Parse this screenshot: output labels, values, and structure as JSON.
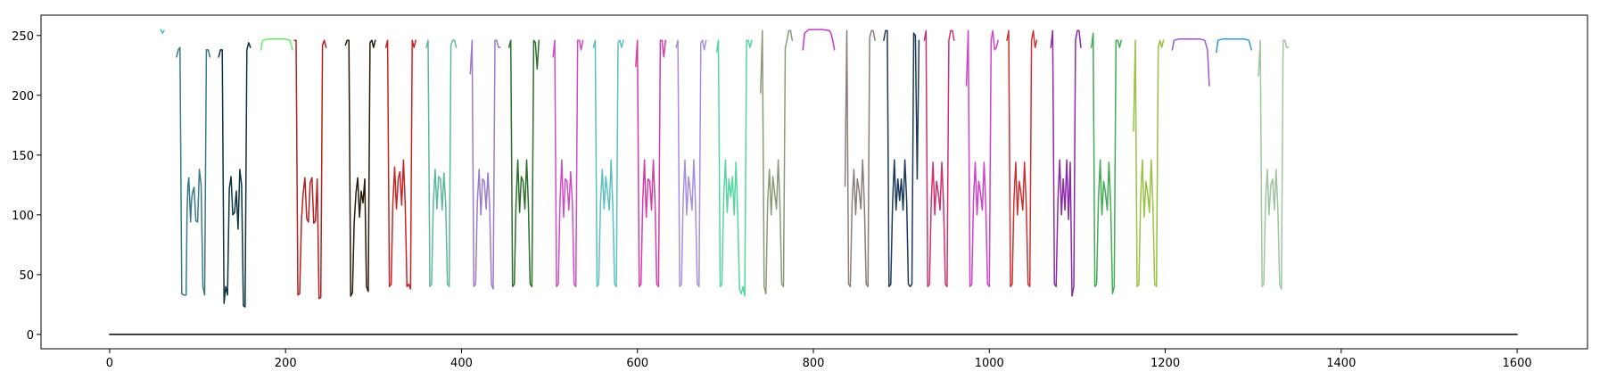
{
  "chart_data": {
    "type": "line",
    "title": "",
    "xlabel": "",
    "ylabel": "",
    "xlim": [
      -78,
      1680
    ],
    "ylim": [
      -12,
      267
    ],
    "grid": false,
    "legend": "none",
    "x_ticks": [
      0,
      200,
      400,
      600,
      800,
      1000,
      1200,
      1400,
      1600
    ],
    "y_ticks": [
      0,
      50,
      100,
      150,
      200,
      250
    ],
    "x_tick_labels": [
      "0",
      "200",
      "400",
      "600",
      "800",
      "1000",
      "1200",
      "1400",
      "1600"
    ],
    "y_tick_labels": [
      "0",
      "50",
      "100",
      "150",
      "200",
      "250"
    ],
    "series": [
      {
        "color": "#000000",
        "x": [
          0,
          1600
        ],
        "y": [
          0,
          0
        ]
      },
      {
        "color": "#3fb8c7",
        "x": [
          58,
          60,
          62
        ],
        "y": [
          255,
          252,
          254
        ]
      },
      {
        "color": "#3a7a86",
        "x": [
          76,
          78,
          80,
          82,
          84,
          87,
          88,
          89,
          90,
          92,
          93,
          94,
          96,
          98,
          100,
          102,
          104,
          106,
          108,
          110,
          112,
          114
        ],
        "y": [
          232,
          238,
          240,
          34,
          33,
          33,
          100,
          125,
          131,
          94,
          112,
          118,
          123,
          95,
          94,
          138,
          125,
          40,
          33,
          238,
          238,
          232
        ]
      },
      {
        "color": "#0d3440",
        "x": [
          124,
          126,
          128,
          130,
          132,
          134,
          136,
          138,
          140,
          142,
          144,
          146,
          148,
          150,
          152,
          154,
          156,
          158,
          160
        ],
        "y": [
          232,
          238,
          238,
          26,
          40,
          33,
          122,
          132,
          100,
          102,
          120,
          88,
          138,
          125,
          24,
          23,
          238,
          244,
          240
        ]
      },
      {
        "color": "#66ee66",
        "x": [
          172,
          174,
          180,
          200,
          205,
          208
        ],
        "y": [
          238,
          246,
          247,
          247,
          246,
          238
        ]
      },
      {
        "color": "#b22222",
        "x": [
          210,
          211,
          212,
          214,
          216,
          218,
          220,
          222,
          224,
          226,
          228,
          230,
          232,
          234,
          236,
          238,
          240,
          242,
          244,
          246
        ],
        "y": [
          246,
          246,
          246,
          33,
          34,
          95,
          118,
          131,
          97,
          94,
          127,
          131,
          93,
          95,
          130,
          30,
          31,
          242,
          246,
          240
        ]
      },
      {
        "color": "#2a1a0a",
        "x": [
          268,
          270,
          272,
          274,
          276,
          278,
          280,
          282,
          284,
          286,
          288,
          290,
          292,
          294,
          296,
          298,
          300,
          302
        ],
        "y": [
          242,
          246,
          246,
          32,
          35,
          93,
          118,
          131,
          98,
          120,
          110,
          130,
          40,
          36,
          244,
          246,
          240,
          246
        ]
      },
      {
        "color": "#cc2222",
        "x": [
          314,
          316,
          318,
          320,
          322,
          324,
          326,
          328,
          330,
          332,
          334,
          336,
          338,
          340,
          342,
          344,
          346,
          348
        ],
        "y": [
          240,
          246,
          40,
          42,
          110,
          140,
          105,
          130,
          136,
          108,
          146,
          110,
          40,
          42,
          38,
          246,
          240,
          246
        ]
      },
      {
        "color": "#5cb89a",
        "x": [
          360,
          362,
          364,
          366,
          368,
          370,
          372,
          374,
          376,
          378,
          380,
          382,
          384,
          386,
          388,
          390,
          392,
          394
        ],
        "y": [
          240,
          246,
          40,
          42,
          110,
          138,
          105,
          132,
          130,
          104,
          135,
          110,
          42,
          40,
          242,
          246,
          246,
          240
        ]
      },
      {
        "color": "#9a7cc8",
        "x": [
          410,
          412,
          414,
          416,
          418,
          420,
          422,
          424,
          426,
          428,
          430,
          432,
          434,
          436,
          438,
          440,
          442,
          444
        ],
        "y": [
          218,
          246,
          40,
          42,
          110,
          138,
          100,
          130,
          128,
          105,
          135,
          108,
          42,
          38,
          246,
          246,
          240,
          240
        ]
      },
      {
        "color": "#2d6e2d",
        "x": [
          454,
          456,
          458,
          460,
          462,
          464,
          466,
          468,
          470,
          472,
          474,
          476,
          478,
          480,
          482,
          484,
          486,
          488
        ],
        "y": [
          240,
          246,
          40,
          42,
          110,
          146,
          102,
          132,
          128,
          105,
          146,
          110,
          42,
          40,
          246,
          244,
          222,
          246
        ]
      },
      {
        "color": "#d04cc4",
        "x": [
          504,
          506,
          508,
          510,
          512,
          514,
          516,
          518,
          520,
          522,
          524,
          526,
          528,
          530,
          532,
          534,
          536,
          538
        ],
        "y": [
          232,
          246,
          40,
          42,
          110,
          146,
          98,
          130,
          128,
          104,
          136,
          110,
          42,
          40,
          246,
          246,
          238,
          246
        ]
      },
      {
        "color": "#5cc0c0",
        "x": [
          550,
          552,
          554,
          556,
          558,
          560,
          562,
          564,
          566,
          568,
          570,
          572,
          574,
          576,
          578,
          580,
          582,
          584
        ],
        "y": [
          240,
          246,
          40,
          42,
          110,
          138,
          105,
          132,
          118,
          104,
          146,
          108,
          42,
          40,
          244,
          246,
          240,
          246
        ]
      },
      {
        "color": "#d63ca6",
        "x": [
          598,
          600,
          602,
          604,
          606,
          608,
          610,
          612,
          614,
          616,
          618,
          620,
          622,
          624,
          626,
          628,
          630,
          632
        ],
        "y": [
          224,
          246,
          40,
          42,
          112,
          146,
          98,
          130,
          128,
          104,
          146,
          110,
          42,
          40,
          246,
          246,
          232,
          246
        ]
      },
      {
        "color": "#a88ee0",
        "x": [
          644,
          646,
          648,
          650,
          652,
          654,
          656,
          658,
          660,
          662,
          664,
          666,
          668,
          670,
          672,
          674,
          676,
          678
        ],
        "y": [
          240,
          246,
          40,
          42,
          112,
          146,
          100,
          132,
          120,
          104,
          146,
          110,
          42,
          40,
          244,
          246,
          238,
          246
        ]
      },
      {
        "color": "#55d6a0",
        "x": [
          690,
          692,
          694,
          696,
          698,
          700,
          702,
          704,
          706,
          708,
          710,
          712,
          714,
          716,
          718,
          720,
          722,
          724,
          726,
          728,
          730
        ],
        "y": [
          236,
          246,
          40,
          42,
          112,
          146,
          102,
          130,
          115,
          132,
          100,
          144,
          100,
          38,
          34,
          40,
          32,
          246,
          246,
          240,
          246
        ]
      },
      {
        "color": "#8a9a78",
        "x": [
          740,
          742,
          744,
          746,
          748,
          750,
          752,
          754,
          756,
          758,
          760,
          762,
          764,
          766,
          768,
          770,
          772,
          774,
          776
        ],
        "y": [
          202,
          254,
          40,
          34,
          110,
          138,
          100,
          132,
          118,
          105,
          146,
          108,
          42,
          40,
          240,
          246,
          254,
          254,
          246
        ]
      },
      {
        "color": "#cc33cc",
        "x": [
          788,
          790,
          795,
          810,
          818,
          820,
          822,
          824
        ],
        "y": [
          238,
          252,
          255,
          255,
          254,
          252,
          246,
          238
        ]
      },
      {
        "color": "#8a7f78",
        "x": [
          836,
          838,
          840,
          842,
          844,
          846,
          848,
          850,
          852,
          854,
          856,
          858,
          860,
          862,
          864,
          866,
          868,
          870
        ],
        "y": [
          124,
          254,
          42,
          40,
          110,
          138,
          100,
          130,
          120,
          105,
          146,
          108,
          42,
          40,
          248,
          254,
          254,
          246
        ]
      },
      {
        "color": "#1e3a5a",
        "x": [
          880,
          882,
          884,
          886,
          888,
          890,
          892,
          894,
          896,
          898,
          900,
          902,
          904,
          906,
          908,
          910,
          912,
          914,
          916,
          918,
          920
        ],
        "y": [
          246,
          254,
          254,
          40,
          42,
          110,
          146,
          104,
          130,
          112,
          130,
          104,
          146,
          112,
          42,
          40,
          42,
          252,
          250,
          130,
          246
        ]
      },
      {
        "color": "#d03070",
        "x": [
          926,
          928,
          930,
          932,
          934,
          936,
          938,
          940,
          942,
          944,
          946,
          948,
          950,
          952,
          954,
          956,
          958,
          960
        ],
        "y": [
          246,
          254,
          40,
          42,
          112,
          144,
          100,
          128,
          118,
          104,
          144,
          108,
          42,
          40,
          246,
          254,
          254,
          246
        ]
      },
      {
        "color": "#d040c8",
        "x": [
          974,
          976,
          978,
          980,
          982,
          984,
          986,
          988,
          990,
          992,
          994,
          996,
          998,
          1000,
          1002,
          1004,
          1006,
          1008,
          1010
        ],
        "y": [
          208,
          254,
          40,
          42,
          112,
          144,
          100,
          128,
          118,
          104,
          144,
          108,
          42,
          40,
          246,
          254,
          238,
          240,
          246
        ]
      },
      {
        "color": "#cc3030",
        "x": [
          1020,
          1022,
          1024,
          1026,
          1028,
          1030,
          1032,
          1034,
          1036,
          1038,
          1040,
          1042,
          1044,
          1046,
          1048,
          1050,
          1052,
          1054
        ],
        "y": [
          246,
          254,
          40,
          42,
          112,
          144,
          100,
          128,
          118,
          104,
          144,
          108,
          42,
          40,
          246,
          254,
          240,
          246
        ]
      },
      {
        "color": "#8a2aa8",
        "x": [
          1070,
          1072,
          1074,
          1076,
          1078,
          1080,
          1082,
          1084,
          1086,
          1088,
          1090,
          1092,
          1094,
          1096,
          1098,
          1100,
          1102,
          1104
        ],
        "y": [
          240,
          254,
          42,
          40,
          112,
          146,
          100,
          130,
          104,
          146,
          96,
          144,
          32,
          40,
          246,
          254,
          254,
          240
        ]
      },
      {
        "color": "#44aa55",
        "x": [
          1116,
          1118,
          1120,
          1122,
          1124,
          1126,
          1128,
          1130,
          1132,
          1134,
          1136,
          1138,
          1140,
          1142,
          1144,
          1146,
          1148,
          1150
        ],
        "y": [
          240,
          252,
          40,
          42,
          112,
          146,
          100,
          128,
          118,
          104,
          144,
          108,
          34,
          40,
          246,
          246,
          240,
          246
        ]
      },
      {
        "color": "#99c144",
        "x": [
          1164,
          1166,
          1168,
          1170,
          1172,
          1174,
          1176,
          1178,
          1180,
          1182,
          1184,
          1186,
          1188,
          1190,
          1192,
          1194,
          1196,
          1198
        ],
        "y": [
          170,
          246,
          40,
          42,
          112,
          146,
          98,
          128,
          118,
          102,
          146,
          108,
          42,
          40,
          240,
          246,
          240,
          246
        ]
      },
      {
        "color": "#9a55dd",
        "x": [
          1208,
          1210,
          1215,
          1240,
          1245,
          1248,
          1250
        ],
        "y": [
          238,
          246,
          247,
          247,
          246,
          238,
          208
        ]
      },
      {
        "color": "#3399dd",
        "x": [
          1258,
          1260,
          1265,
          1290,
          1295,
          1298
        ],
        "y": [
          236,
          246,
          247,
          247,
          246,
          238
        ]
      },
      {
        "color": "#a0c4a0",
        "x": [
          1306,
          1308,
          1310,
          1312,
          1314,
          1316,
          1318,
          1320,
          1322,
          1324,
          1326,
          1328,
          1330,
          1332,
          1334,
          1336,
          1338,
          1340
        ],
        "y": [
          216,
          246,
          40,
          42,
          112,
          138,
          100,
          125,
          130,
          104,
          138,
          105,
          42,
          38,
          246,
          246,
          240,
          240
        ]
      }
    ]
  }
}
